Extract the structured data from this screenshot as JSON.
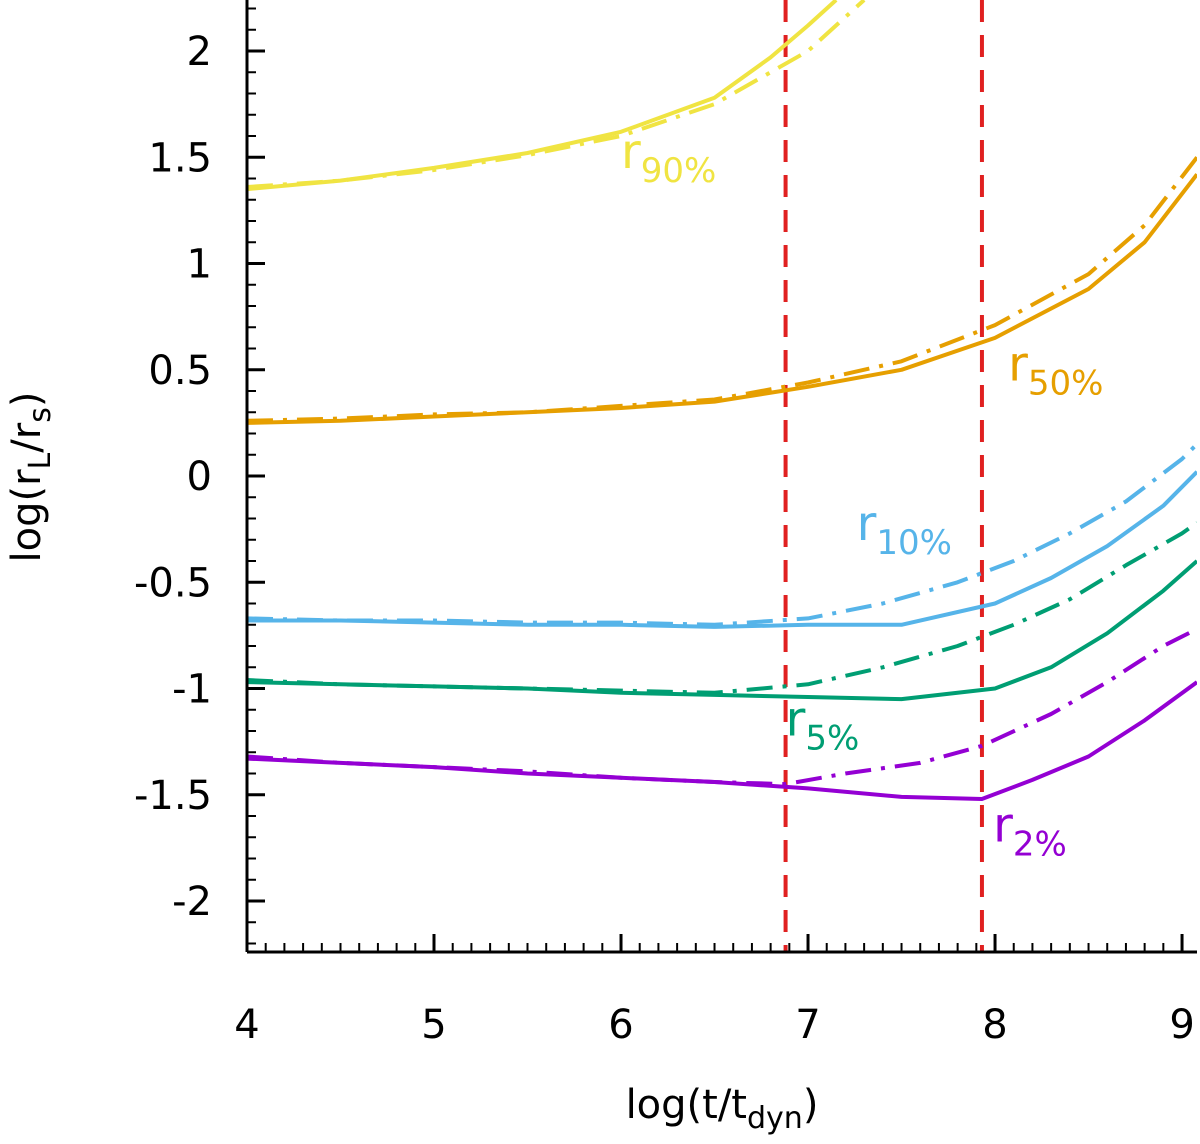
{
  "chart_data": {
    "type": "line",
    "title": "",
    "xlabel_main": "log(t/t",
    "xlabel_sub": "dyn",
    "xlabel_close": ")",
    "ylabel_main": "log(r",
    "ylabel_sub1": "L",
    "ylabel_mid": "/r",
    "ylabel_sub2": "s",
    "ylabel_close": ")",
    "xlim": [
      4,
      9.08
    ],
    "ylim": [
      -2.24,
      2.24
    ],
    "x_ticks": [
      4,
      5,
      6,
      7,
      8,
      9
    ],
    "x_tick_labels": [
      "4",
      "5",
      "6",
      "7",
      "8",
      "9"
    ],
    "y_ticks": [
      2,
      1.5,
      1,
      0.5,
      0,
      -0.5,
      -1,
      -1.5,
      -2
    ],
    "y_tick_labels": [
      "2",
      "1.5",
      "1",
      "0.5",
      "0",
      "-0.5",
      "-1",
      "-1.5",
      "-2"
    ],
    "vlines": [
      {
        "x": 6.88,
        "color": "#e02020",
        "style": "dashed"
      },
      {
        "x": 7.93,
        "color": "#e02020",
        "style": "dashed"
      }
    ],
    "series": [
      {
        "name": "r90% solid",
        "group": "r90",
        "color": "#f0e442",
        "style": "solid",
        "x": [
          4.0,
          4.5,
          5.0,
          5.5,
          6.0,
          6.5,
          6.8,
          7.0,
          7.15
        ],
        "y": [
          1.35,
          1.39,
          1.45,
          1.52,
          1.62,
          1.78,
          1.97,
          2.12,
          2.24
        ]
      },
      {
        "name": "r90% dash-dot",
        "group": "r90",
        "color": "#f0e442",
        "style": "dashdot",
        "x": [
          4.0,
          4.5,
          5.0,
          5.5,
          6.0,
          6.5,
          7.0,
          7.3
        ],
        "y": [
          1.36,
          1.39,
          1.44,
          1.51,
          1.6,
          1.75,
          2.0,
          2.24
        ]
      },
      {
        "name": "r50% solid",
        "group": "r50",
        "color": "#e69f00",
        "style": "solid",
        "x": [
          4.0,
          4.5,
          5.0,
          5.5,
          6.0,
          6.5,
          7.0,
          7.5,
          8.0,
          8.5,
          8.8,
          9.08
        ],
        "y": [
          0.25,
          0.26,
          0.28,
          0.3,
          0.32,
          0.35,
          0.42,
          0.5,
          0.65,
          0.88,
          1.1,
          1.42
        ]
      },
      {
        "name": "r50% dash-dot",
        "group": "r50",
        "color": "#e69f00",
        "style": "dashdot",
        "x": [
          4.0,
          4.5,
          5.0,
          5.5,
          6.0,
          6.5,
          7.0,
          7.5,
          8.0,
          8.5,
          8.8,
          9.08
        ],
        "y": [
          0.26,
          0.27,
          0.29,
          0.3,
          0.33,
          0.36,
          0.44,
          0.54,
          0.71,
          0.95,
          1.18,
          1.5
        ]
      },
      {
        "name": "r10% solid",
        "group": "r10",
        "color": "#56b4e9",
        "style": "solid",
        "x": [
          4.0,
          4.5,
          5.0,
          5.5,
          6.0,
          6.5,
          7.0,
          7.5,
          8.0,
          8.3,
          8.6,
          8.9,
          9.08
        ],
        "y": [
          -0.68,
          -0.68,
          -0.69,
          -0.7,
          -0.7,
          -0.71,
          -0.7,
          -0.7,
          -0.6,
          -0.48,
          -0.33,
          -0.14,
          0.02
        ]
      },
      {
        "name": "r10% dash-dot",
        "group": "r10",
        "color": "#56b4e9",
        "style": "dashdot",
        "x": [
          4.0,
          4.5,
          5.0,
          5.5,
          6.0,
          6.5,
          7.0,
          7.4,
          7.8,
          8.1,
          8.4,
          8.7,
          9.0,
          9.08
        ],
        "y": [
          -0.67,
          -0.68,
          -0.68,
          -0.69,
          -0.69,
          -0.7,
          -0.67,
          -0.6,
          -0.5,
          -0.4,
          -0.27,
          -0.12,
          0.08,
          0.15
        ]
      },
      {
        "name": "r5% solid",
        "group": "r5",
        "color": "#009e73",
        "style": "solid",
        "x": [
          4.0,
          4.5,
          5.0,
          5.5,
          6.0,
          6.5,
          7.0,
          7.5,
          8.0,
          8.3,
          8.6,
          8.9,
          9.08
        ],
        "y": [
          -0.97,
          -0.98,
          -0.99,
          -1.0,
          -1.02,
          -1.03,
          -1.04,
          -1.05,
          -1.0,
          -0.9,
          -0.74,
          -0.54,
          -0.4
        ]
      },
      {
        "name": "r5% dash-dot",
        "group": "r5",
        "color": "#009e73",
        "style": "dashdot",
        "x": [
          4.0,
          4.5,
          5.0,
          5.5,
          6.0,
          6.5,
          7.0,
          7.4,
          7.8,
          8.1,
          8.4,
          8.7,
          9.0,
          9.08
        ],
        "y": [
          -0.96,
          -0.98,
          -0.99,
          -1.0,
          -1.01,
          -1.02,
          -0.98,
          -0.9,
          -0.8,
          -0.7,
          -0.58,
          -0.42,
          -0.27,
          -0.22
        ]
      },
      {
        "name": "r2% solid",
        "group": "r2",
        "color": "#9400d3",
        "style": "solid",
        "x": [
          4.0,
          4.5,
          5.0,
          5.5,
          6.0,
          6.5,
          7.0,
          7.5,
          7.93,
          8.2,
          8.5,
          8.8,
          9.08
        ],
        "y": [
          -1.33,
          -1.35,
          -1.37,
          -1.4,
          -1.42,
          -1.44,
          -1.47,
          -1.51,
          -1.52,
          -1.43,
          -1.32,
          -1.15,
          -0.97
        ]
      },
      {
        "name": "r2% dash-dot",
        "group": "r2",
        "color": "#9400d3",
        "style": "dashdot",
        "x": [
          4.0,
          4.5,
          5.0,
          5.5,
          6.0,
          6.5,
          6.88,
          7.2,
          7.6,
          7.93,
          8.3,
          8.6,
          8.9,
          9.08
        ],
        "y": [
          -1.32,
          -1.35,
          -1.37,
          -1.39,
          -1.42,
          -1.44,
          -1.45,
          -1.4,
          -1.35,
          -1.27,
          -1.12,
          -0.97,
          -0.8,
          -0.72
        ]
      }
    ],
    "annotations": [
      {
        "main": "r",
        "sub": "90%",
        "color": "#f0e442",
        "x": 6.0,
        "y": 1.45
      },
      {
        "main": "r",
        "sub": "50%",
        "color": "#e69f00",
        "x": 8.07,
        "y": 0.45
      },
      {
        "main": "r",
        "sub": "10%",
        "color": "#56b4e9",
        "x": 7.26,
        "y": -0.3
      },
      {
        "main": "r",
        "sub": "5%",
        "color": "#009e73",
        "x": 6.88,
        "y": -1.22
      },
      {
        "main": "r",
        "sub": "2%",
        "color": "#9400d3",
        "x": 7.99,
        "y": -1.72
      }
    ]
  }
}
